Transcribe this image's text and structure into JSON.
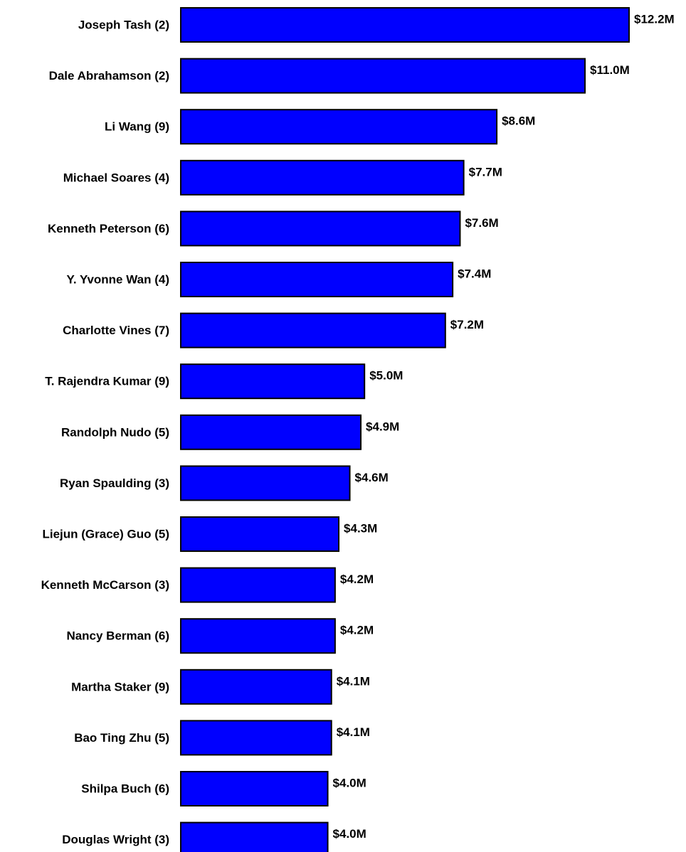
{
  "chart_data": {
    "type": "bar",
    "orientation": "horizontal",
    "categories": [
      "Joseph Tash (2)",
      "Dale Abrahamson (2)",
      "Li Wang (9)",
      "Michael Soares (4)",
      "Kenneth Peterson (6)",
      "Y. Yvonne Wan (4)",
      "Charlotte Vines (7)",
      "T. Rajendra Kumar (9)",
      "Randolph Nudo (5)",
      "Ryan Spaulding (3)",
      "Liejun (Grace) Guo (5)",
      "Kenneth McCarson (3)",
      "Nancy Berman (6)",
      "Martha Staker (9)",
      "Bao Ting Zhu (5)",
      "Shilpa Buch (6)",
      "Douglas Wright (3)"
    ],
    "values": [
      12.2,
      11.0,
      8.6,
      7.7,
      7.6,
      7.4,
      7.2,
      5.0,
      4.9,
      4.6,
      4.3,
      4.2,
      4.2,
      4.1,
      4.1,
      4.0,
      4.0
    ],
    "data_labels": [
      "$12.2M",
      "$11.0M",
      "$8.6M",
      "$7.7M",
      "$7.6M",
      "$7.4M",
      "$7.2M",
      "$5.0M",
      "$4.9M",
      "$4.6M",
      "$4.3M",
      "$4.2M",
      "$4.2M",
      "$4.1M",
      "$4.1M",
      "$4.0M",
      "$4.0M"
    ],
    "xlim": [
      0,
      12.2
    ],
    "grid": false,
    "legend": "none",
    "bar_color": "#0000ff",
    "bar_edge_color": "#000000"
  }
}
